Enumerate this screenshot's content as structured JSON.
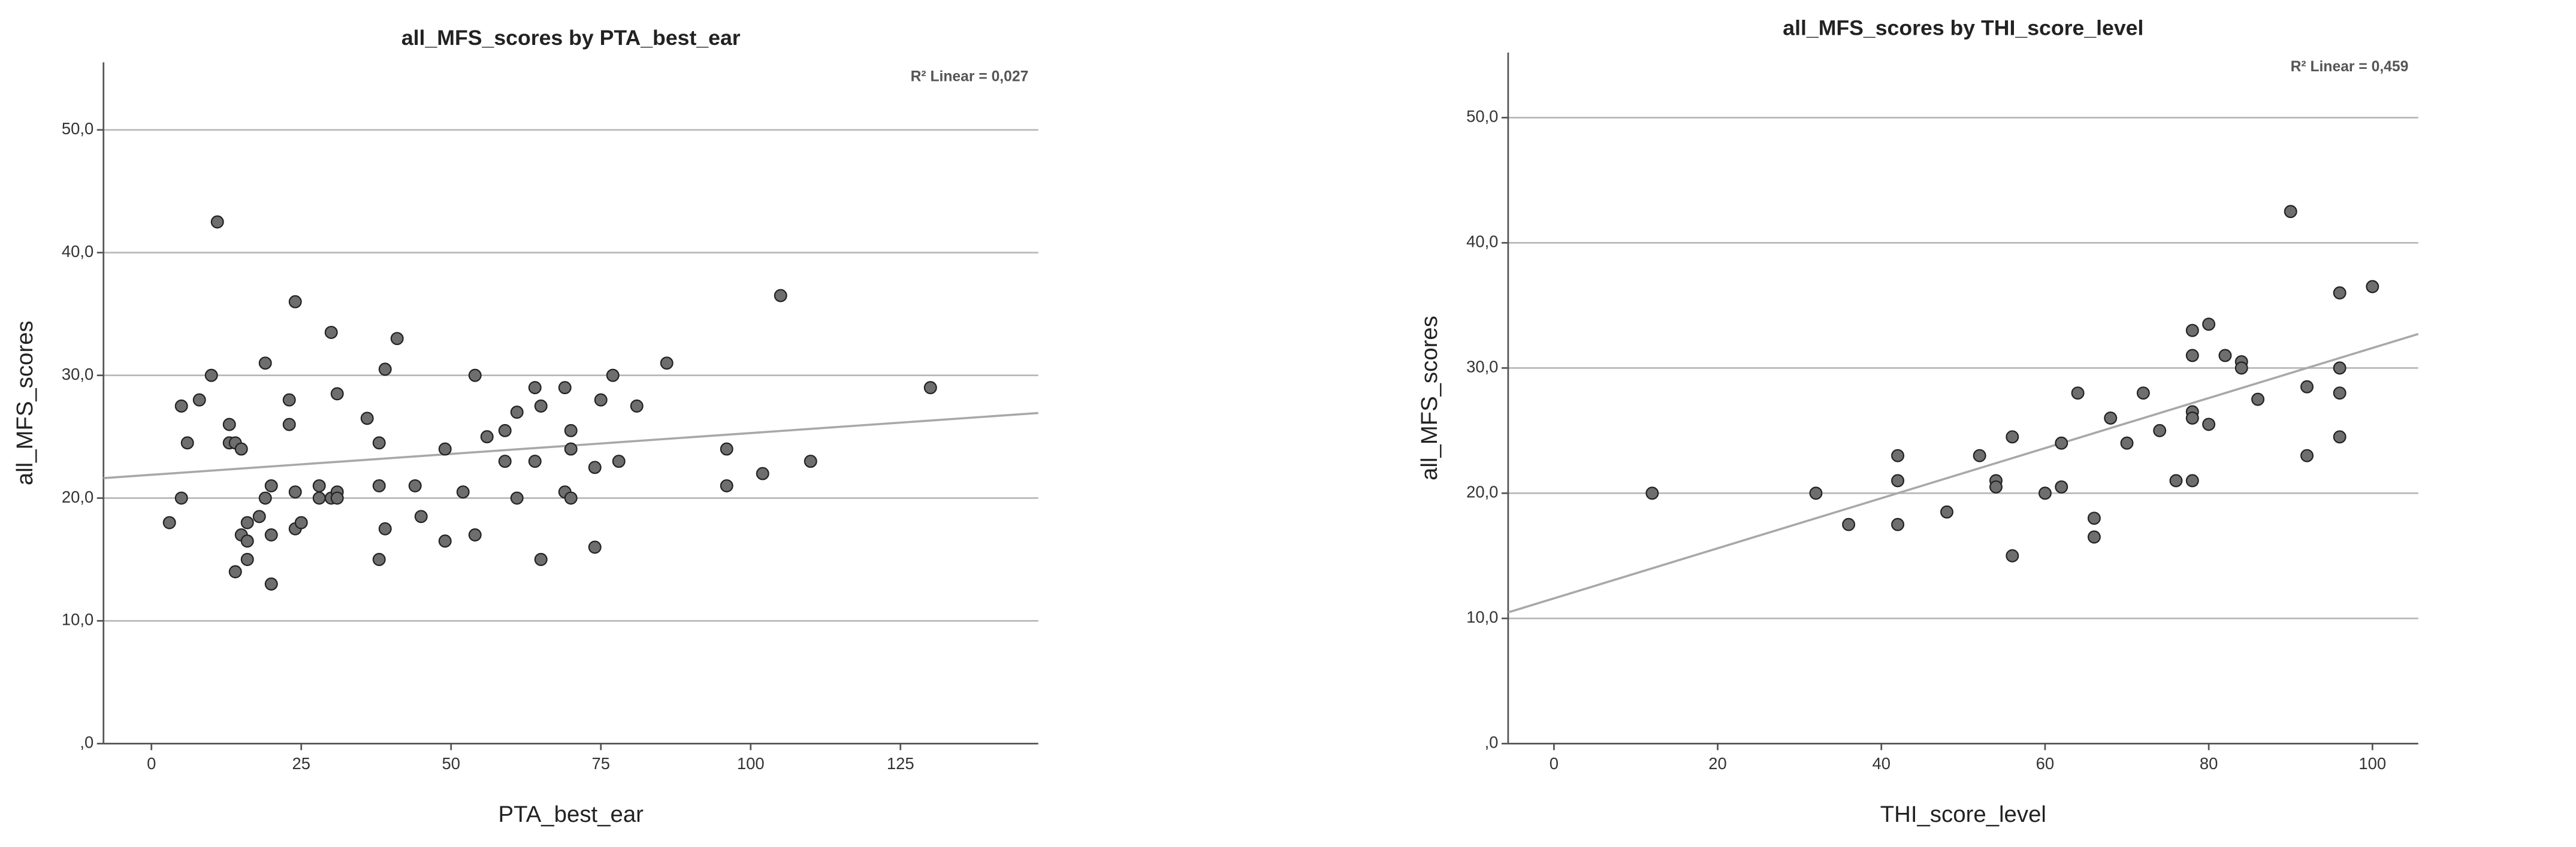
{
  "chart_data": [
    {
      "type": "scatter",
      "title": "all_MFS_scores by PTA_best_ear",
      "x_label": "PTA_best_ear",
      "y_label": "all_MFS_scores",
      "annotation": "R² Linear = 0,027",
      "color": "#6e6e6e",
      "grid": true,
      "xlim": [
        -8,
        148
      ],
      "ylim": [
        0,
        55.5
      ],
      "xticks": [
        0,
        25,
        50,
        75,
        100,
        125
      ],
      "yticks": [
        {
          "value": 0,
          "label": ",0"
        },
        {
          "value": 10,
          "label": "10,0"
        },
        {
          "value": 20,
          "label": "20,0"
        },
        {
          "value": 30,
          "label": "30,0"
        },
        {
          "value": 40,
          "label": "40,0"
        },
        {
          "value": 50,
          "label": "50,0"
        }
      ],
      "fit": {
        "intercept": 21.9,
        "slope": 0.034
      },
      "x": [
        3,
        5,
        5,
        6,
        8,
        10,
        11,
        13,
        13,
        14,
        14,
        15,
        15,
        16,
        16,
        16,
        18,
        19,
        19,
        20,
        20,
        20,
        23,
        23,
        24,
        24,
        24,
        25,
        28,
        28,
        30,
        30,
        31,
        31,
        31,
        36,
        38,
        38,
        38,
        39,
        39,
        41,
        44,
        45,
        49,
        49,
        52,
        54,
        54,
        56,
        59,
        59,
        61,
        61,
        64,
        64,
        65,
        65,
        69,
        69,
        70,
        70,
        70,
        74,
        74,
        75,
        77,
        78,
        81,
        86,
        96,
        96,
        102,
        105,
        110,
        130
      ],
      "values": [
        18,
        27.5,
        20,
        24.5,
        28,
        30,
        42.5,
        26,
        24.5,
        24.5,
        14,
        24,
        17,
        16.5,
        15,
        18,
        18.5,
        31,
        20,
        21,
        17,
        13,
        28,
        26,
        36,
        20.5,
        17.5,
        18,
        21,
        20,
        33.5,
        20,
        28.5,
        20.5,
        20,
        26.5,
        24.5,
        21,
        15,
        30.5,
        17.5,
        33,
        21,
        18.5,
        24,
        16.5,
        20.5,
        30,
        17,
        25,
        25.5,
        23,
        27,
        20,
        29,
        23,
        27.5,
        15,
        29,
        20.5,
        25.5,
        24,
        20,
        22.5,
        16,
        28,
        30,
        23,
        27.5,
        31,
        24,
        21,
        22,
        36.5,
        23,
        29
      ]
    },
    {
      "type": "scatter",
      "title": "all_MFS_scores by THI_score_level",
      "x_label": "THI_score_level",
      "y_label": "all_MFS_scores",
      "annotation": "R² Linear = 0,459",
      "color": "#6e6e6e",
      "grid": true,
      "xlim": [
        -5.6,
        105.6
      ],
      "ylim": [
        0,
        55.2
      ],
      "xticks": [
        0,
        20,
        40,
        60,
        80,
        100
      ],
      "yticks": [
        {
          "value": 0,
          "label": ",0"
        },
        {
          "value": 10,
          "label": "10,0"
        },
        {
          "value": 20,
          "label": "20,0"
        },
        {
          "value": 30,
          "label": "30,0"
        },
        {
          "value": 40,
          "label": "40,0"
        },
        {
          "value": 50,
          "label": "50,0"
        }
      ],
      "fit": {
        "intercept": 11.6,
        "slope": 0.2
      },
      "x": [
        12,
        32,
        36,
        42,
        42,
        42,
        48,
        52,
        54,
        54,
        56,
        56,
        60,
        62,
        62,
        64,
        66,
        66,
        68,
        70,
        72,
        74,
        76,
        78,
        78,
        78,
        78,
        78,
        80,
        80,
        82,
        84,
        84,
        86,
        90,
        92,
        92,
        96,
        96,
        96,
        96,
        100
      ],
      "values": [
        20,
        20,
        17.5,
        23,
        21,
        17.5,
        18.5,
        23,
        21,
        20.5,
        24.5,
        15,
        20,
        24,
        20.5,
        28,
        18,
        16.5,
        26,
        24,
        28,
        25,
        21,
        33,
        31,
        26.5,
        26,
        21,
        33.5,
        25.5,
        31,
        30.5,
        30,
        27.5,
        42.5,
        28.5,
        23,
        36,
        30,
        28,
        24.5,
        36.5
      ]
    }
  ]
}
